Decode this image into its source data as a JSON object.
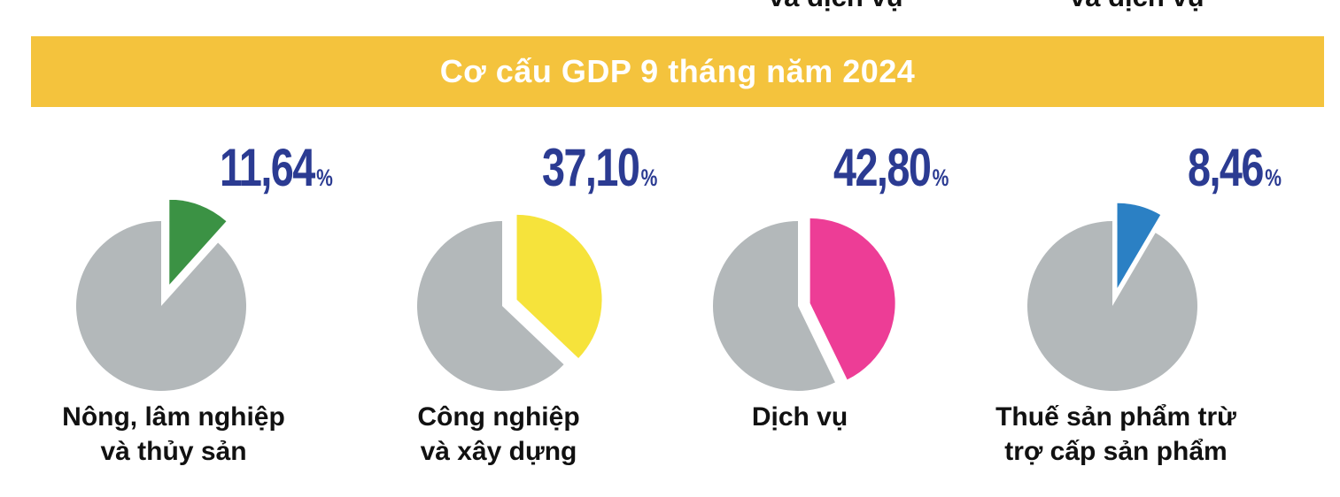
{
  "top_clipped_labels": {
    "fragment1": "và dịch vụ",
    "fragment2": "và dịch vụ"
  },
  "banner": {
    "title": "Cơ cấu GDP 9 tháng năm 2024"
  },
  "colors": {
    "banner_bg": "#f4c33d",
    "title_text": "#ffffff",
    "percent_text": "#2b3b92",
    "pie_rest_gray": "#b3b8ba",
    "label_text": "#111111"
  },
  "pies": [
    {
      "value": "11,64",
      "percent_sign": "%",
      "pct": 11.64,
      "color": "#3b9244",
      "label_line1": "Nông, lâm nghiệp",
      "label_line2": "và thủy sản"
    },
    {
      "value": "37,10",
      "percent_sign": "%",
      "pct": 37.1,
      "color": "#f6e33b",
      "label_line1": "Công nghiệp",
      "label_line2": "và xây dựng"
    },
    {
      "value": "42,80",
      "percent_sign": "%",
      "pct": 42.8,
      "color": "#ed3d96",
      "label_line1": "Dịch vụ",
      "label_line2": ""
    },
    {
      "value": "8,46",
      "percent_sign": "%",
      "pct": 8.46,
      "color": "#2b80c4",
      "label_line1": "Thuế sản phẩm trừ",
      "label_line2": "trợ cấp sản phẩm"
    }
  ],
  "chart_data": {
    "type": "pie",
    "title": "Cơ cấu GDP 9 tháng năm 2024",
    "unit": "%",
    "categories": [
      "Nông, lâm nghiệp và thủy sản",
      "Công nghiệp và xây dựng",
      "Dịch vụ",
      "Thuế sản phẩm trừ trợ cấp sản phẩm"
    ],
    "values": [
      11.64,
      37.1,
      42.8,
      8.46
    ],
    "display_values": [
      "11,64%",
      "37,10%",
      "42,80%",
      "8,46%"
    ],
    "colors": [
      "#3b9244",
      "#f6e33b",
      "#ed3d96",
      "#2b80c4"
    ],
    "remainder_color": "#b3b8ba",
    "layout": "four separate single-highlight exploded pies, remainder gray, slice starts at 12 o'clock clockwise"
  }
}
